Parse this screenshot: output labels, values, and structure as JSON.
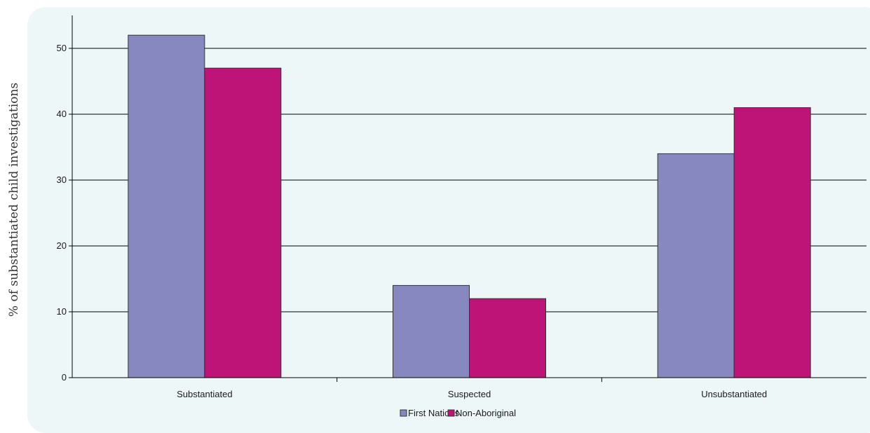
{
  "chart_data": {
    "type": "bar",
    "title": "",
    "xlabel": "",
    "ylabel": "% of substantiated child investigations",
    "categories": [
      "Substantiated",
      "Suspected",
      "Unsubstantiated"
    ],
    "series": [
      {
        "name": "First Nations",
        "values": [
          52,
          14,
          34
        ],
        "color": "#8888c0"
      },
      {
        "name": "Non-Aboriginal",
        "values": [
          47,
          12,
          41
        ],
        "color": "#be1478"
      }
    ],
    "ylim": [
      0,
      55
    ],
    "yticks": [
      0,
      10,
      20,
      30,
      40,
      50
    ],
    "grid": true,
    "legend_position": "bottom"
  },
  "colors": {
    "panel_background": "#eef7f8",
    "gridline": "#000000"
  }
}
